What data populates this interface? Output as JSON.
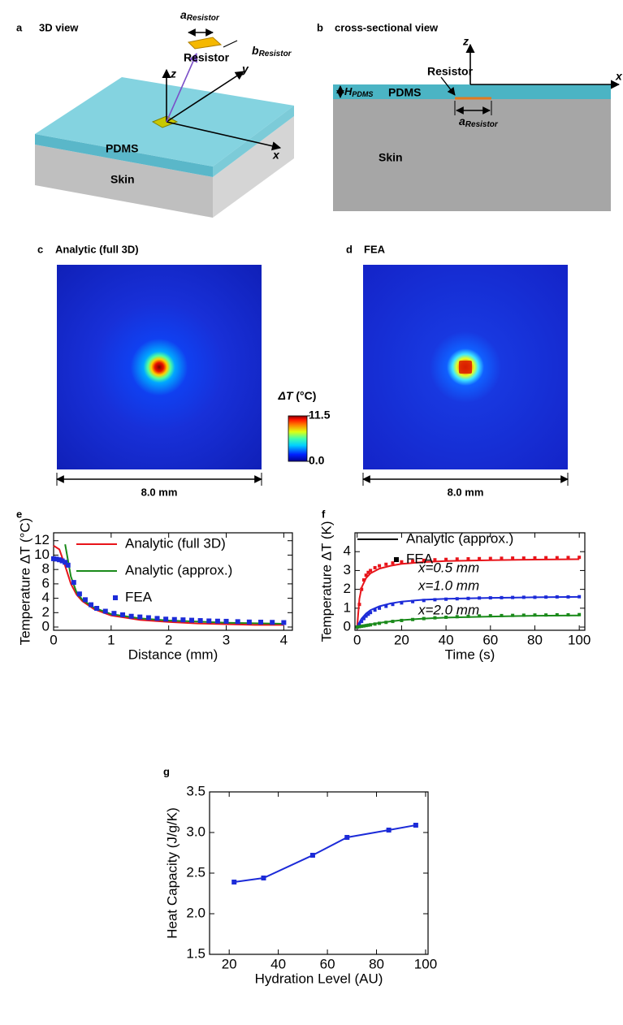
{
  "panel_a": {
    "label": "a",
    "title": "3D view",
    "a_resistor": {
      "symbol": "a",
      "subscript": "Resistor"
    },
    "b_resistor": {
      "symbol": "b",
      "subscript": "Resistor"
    },
    "resistor": "Resistor",
    "z": "z",
    "y": "y",
    "x": "x",
    "pdms": "PDMS",
    "skin": "Skin"
  },
  "panel_b": {
    "label": "b",
    "title": "cross-sectional view",
    "resistor": "Resistor",
    "h_pdms": {
      "symbol": "H",
      "subscript": "PDMS"
    },
    "pdms": "PDMS",
    "a_resistor": {
      "symbol": "a",
      "subscript": "Resistor"
    },
    "skin": "Skin",
    "z": "z",
    "x": "x"
  },
  "panel_c": {
    "label": "c",
    "title": "Analytic (full 3D)",
    "scale": "8.0 mm"
  },
  "panel_d": {
    "label": "d",
    "title": "FEA",
    "scale": "8.0 mm"
  },
  "colorbar": {
    "symbol": "ΔT",
    "unit": "(°C)",
    "ticks": [
      {
        "value": 0,
        "label": "0.0"
      },
      11.5
    ]
  },
  "chart_data": [
    {
      "type": "line",
      "label": "e",
      "x_label": "Distance (mm)",
      "y_label": "Temperature ΔT (°C)",
      "xlim": [
        0,
        4.15
      ],
      "xticks": [
        0,
        1,
        2,
        3,
        4
      ],
      "ylim": [
        -0.45,
        13.1
      ],
      "yticks": [
        0,
        2,
        4,
        6,
        8,
        10,
        12
      ],
      "series": [
        {
          "name": "Analytic (full 3D)",
          "color": "#e8141a",
          "style": "line",
          "x": [
            0,
            0.1,
            0.2,
            0.3,
            0.4,
            0.5,
            0.7,
            1,
            1.5,
            2,
            2.5,
            3,
            3.5,
            4
          ],
          "values": [
            11.3,
            10.8,
            8.5,
            6,
            4.5,
            3.6,
            2.5,
            1.6,
            1.0,
            0.7,
            0.5,
            0.4,
            0.3,
            0.3
          ]
        },
        {
          "name": "Analytic (approx.)",
          "color": "#1a8a1a",
          "style": "line",
          "x": [
            0.2,
            0.3,
            0.4,
            0.5,
            0.7,
            1,
            1.5,
            2,
            3,
            4
          ],
          "values": [
            11.5,
            7,
            4.8,
            3.8,
            2.7,
            1.8,
            1.2,
            0.9,
            0.6,
            0.45
          ]
        },
        {
          "name": "FEA",
          "color": "#1c2bd8",
          "style": "square",
          "x": [
            0,
            0.05,
            0.1,
            0.15,
            0.2,
            0.25,
            0.35,
            0.45,
            0.55,
            0.65,
            0.75,
            0.9,
            1.05,
            1.2,
            1.35,
            1.5,
            1.65,
            1.8,
            1.95,
            2.1,
            2.25,
            2.4,
            2.55,
            2.7,
            2.85,
            3.0,
            3.2,
            3.4,
            3.6,
            3.8,
            4.0
          ],
          "values": [
            9.5,
            9.45,
            9.35,
            9.2,
            9.0,
            8.6,
            6.2,
            4.6,
            3.8,
            3.1,
            2.6,
            2.2,
            1.9,
            1.7,
            1.5,
            1.4,
            1.3,
            1.2,
            1.1,
            1.05,
            1.0,
            0.95,
            0.9,
            0.85,
            0.82,
            0.8,
            0.75,
            0.7,
            0.68,
            0.65,
            0.62
          ]
        }
      ]
    },
    {
      "type": "line",
      "label": "f",
      "x_label": "Time (s)",
      "y_label": "Temperature ΔT (K)",
      "xlim": [
        -1,
        102.5
      ],
      "xticks": [
        0,
        20,
        40,
        60,
        80,
        100
      ],
      "ylim": [
        -0.17,
        5.0
      ],
      "yticks": [
        0,
        1,
        2,
        3,
        4
      ],
      "legend": [
        {
          "name": "Analytic (approx.)",
          "color": "#000000",
          "style": "line"
        },
        {
          "name": "FEA",
          "color": "#000000",
          "style": "square"
        }
      ],
      "series": [
        {
          "name": "x=0.5 mm",
          "color": "#e8141a",
          "style": "line",
          "x": [
            0,
            1,
            2,
            4,
            6,
            10,
            15,
            20,
            30,
            40,
            60,
            80,
            100
          ],
          "values": [
            0,
            1.5,
            2.1,
            2.6,
            2.85,
            3.1,
            3.25,
            3.35,
            3.45,
            3.5,
            3.55,
            3.58,
            3.6
          ]
        },
        {
          "name": "x=1.0 mm",
          "color": "#1c2bd8",
          "style": "line",
          "x": [
            0,
            1,
            2,
            4,
            6,
            10,
            15,
            20,
            30,
            40,
            60,
            80,
            100
          ],
          "values": [
            0,
            0.25,
            0.45,
            0.72,
            0.9,
            1.1,
            1.25,
            1.35,
            1.45,
            1.5,
            1.55,
            1.58,
            1.6
          ]
        },
        {
          "name": "x=2.0 mm",
          "color": "#1a8a1a",
          "style": "line",
          "x": [
            0,
            1,
            2,
            4,
            6,
            10,
            15,
            20,
            30,
            40,
            60,
            80,
            100
          ],
          "values": [
            0,
            0.03,
            0.06,
            0.1,
            0.14,
            0.22,
            0.3,
            0.37,
            0.45,
            0.5,
            0.56,
            0.6,
            0.62
          ]
        },
        {
          "color": "#e8141a",
          "style": "square",
          "x": [
            0,
            1,
            2,
            3,
            4,
            5,
            6,
            8,
            10,
            13,
            16,
            20,
            25,
            30,
            35,
            40,
            45,
            50,
            55,
            60,
            65,
            70,
            75,
            80,
            85,
            90,
            95,
            100
          ],
          "values": [
            0,
            1.2,
            2.0,
            2.5,
            2.75,
            2.9,
            3.0,
            3.15,
            3.25,
            3.33,
            3.4,
            3.46,
            3.5,
            3.54,
            3.57,
            3.59,
            3.61,
            3.62,
            3.63,
            3.64,
            3.65,
            3.66,
            3.66,
            3.67,
            3.68,
            3.68,
            3.69,
            3.7
          ]
        },
        {
          "color": "#1c2bd8",
          "style": "square",
          "x": [
            0,
            1,
            2,
            3,
            4,
            5,
            6,
            8,
            10,
            13,
            16,
            20,
            25,
            30,
            35,
            40,
            45,
            50,
            55,
            60,
            65,
            70,
            75,
            80,
            85,
            90,
            95,
            100
          ],
          "values": [
            0,
            0.15,
            0.3,
            0.45,
            0.58,
            0.68,
            0.77,
            0.9,
            1.0,
            1.1,
            1.2,
            1.28,
            1.35,
            1.41,
            1.45,
            1.48,
            1.5,
            1.52,
            1.54,
            1.55,
            1.56,
            1.57,
            1.58,
            1.58,
            1.59,
            1.6,
            1.6,
            1.61
          ]
        },
        {
          "color": "#1a8a1a",
          "style": "square",
          "x": [
            0,
            1,
            2,
            3,
            4,
            5,
            6,
            8,
            10,
            13,
            16,
            20,
            25,
            30,
            35,
            40,
            45,
            50,
            55,
            60,
            65,
            70,
            75,
            80,
            85,
            90,
            95,
            100
          ],
          "values": [
            0,
            0.02,
            0.04,
            0.06,
            0.08,
            0.1,
            0.12,
            0.16,
            0.2,
            0.25,
            0.3,
            0.35,
            0.4,
            0.45,
            0.49,
            0.52,
            0.55,
            0.57,
            0.59,
            0.6,
            0.61,
            0.62,
            0.63,
            0.64,
            0.64,
            0.65,
            0.65,
            0.66
          ]
        }
      ]
    },
    {
      "type": "line",
      "label": "g",
      "x_label": "Hydration Level (AU)",
      "y_label": "Heat Capacity (J/g/K)",
      "xlim": [
        12,
        101
      ],
      "xticks": [
        20,
        40,
        60,
        80,
        100
      ],
      "ylim": [
        1.5,
        3.5
      ],
      "yticks": [
        1.5,
        {
          "value": 2,
          "label": "2.0"
        },
        2.5,
        {
          "value": 3,
          "label": "3.0"
        },
        3.5
      ],
      "series": [
        {
          "color": "#1c2bd8",
          "style": "line-square",
          "x": [
            22,
            34,
            54,
            68,
            85,
            96
          ],
          "values": [
            2.39,
            2.44,
            2.72,
            2.94,
            3.03,
            3.09
          ]
        }
      ]
    }
  ]
}
